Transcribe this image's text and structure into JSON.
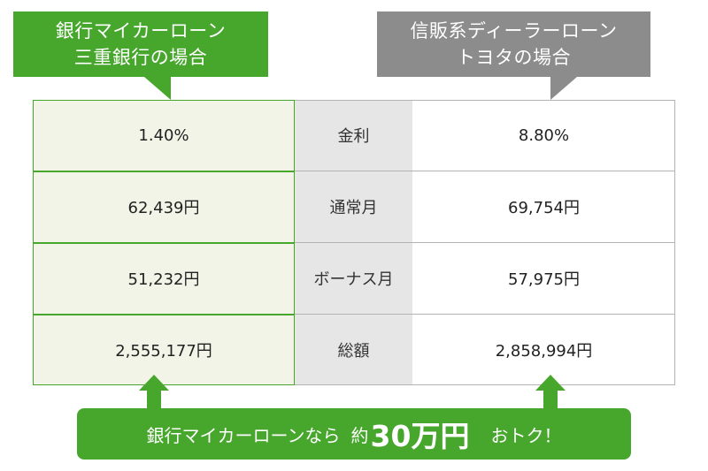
{
  "callouts": {
    "left": {
      "line1": "銀行マイカーローン",
      "line2": "三重銀行の場合"
    },
    "right": {
      "line1": "信販系ディーラーローン",
      "line2": "トヨタの場合"
    }
  },
  "table": {
    "rows": [
      {
        "bank": "1.40%",
        "label": "金利",
        "dealer": "8.80%"
      },
      {
        "bank": "62,439円",
        "label": "通常月",
        "dealer": "69,754円"
      },
      {
        "bank": "51,232円",
        "label": "ボーナス月",
        "dealer": "57,975円"
      },
      {
        "bank": "2,555,177円",
        "label": "総額",
        "dealer": "2,858,994円"
      }
    ]
  },
  "banner": {
    "prefix": "銀行マイカーローンなら",
    "about": "約",
    "amount": "30万円",
    "suffix": "おトク！"
  },
  "colors": {
    "accent_green": "#47a72d",
    "gray": "#8c8c8c",
    "left_bg": "#f1f4e6",
    "mid_bg": "#e6e6e6"
  }
}
